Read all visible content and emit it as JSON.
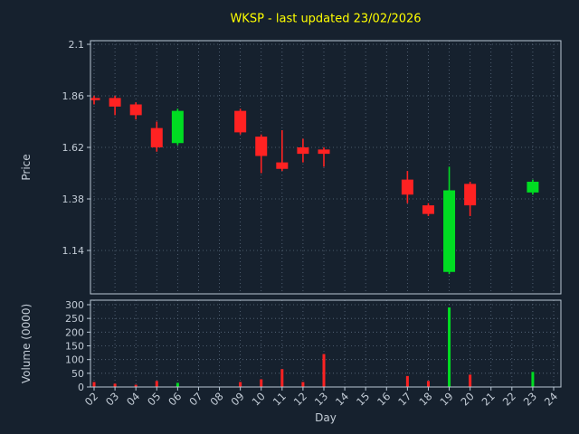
{
  "title": "WKSP - last updated 23/02/2026",
  "colors": {
    "background": "#16212e",
    "title": "#ffff00",
    "frame": "#b9c7d4",
    "text": "#c3ccd6",
    "grid": "#5d6d80",
    "up": "#00dd22",
    "down": "#ff2222"
  },
  "axes": {
    "price_label": "Price",
    "volume_label": "Volume (0000)",
    "x_label": "Day",
    "price_ticks": [
      2.1,
      1.86,
      1.62,
      1.38,
      1.14
    ],
    "volume_ticks": [
      0,
      50,
      100,
      150,
      200,
      250,
      300
    ],
    "x_tick_labels": [
      "02",
      "03",
      "04",
      "05",
      "06",
      "07",
      "08",
      "09",
      "10",
      "11",
      "12",
      "13",
      "14",
      "15",
      "16",
      "17",
      "18",
      "19",
      "20",
      "21",
      "22",
      "23",
      "24"
    ]
  },
  "chart_data": {
    "type": "candlestick",
    "xlabel": "Day",
    "ylabel_price": "Price",
    "ylabel_volume": "Volume (0000)",
    "price_range": [
      0.94,
      2.12
    ],
    "volume_range": [
      0,
      300
    ],
    "candles": [
      {
        "day": 2,
        "open": 1.85,
        "high": 1.86,
        "low": 1.82,
        "close": 1.84
      },
      {
        "day": 3,
        "open": 1.85,
        "high": 1.86,
        "low": 1.77,
        "close": 1.81
      },
      {
        "day": 4,
        "open": 1.82,
        "high": 1.83,
        "low": 1.75,
        "close": 1.77
      },
      {
        "day": 5,
        "open": 1.71,
        "high": 1.74,
        "low": 1.6,
        "close": 1.62
      },
      {
        "day": 6,
        "open": 1.64,
        "high": 1.8,
        "low": 1.63,
        "close": 1.79
      },
      {
        "day": 9,
        "open": 1.79,
        "high": 1.8,
        "low": 1.68,
        "close": 1.69
      },
      {
        "day": 10,
        "open": 1.67,
        "high": 1.68,
        "low": 1.5,
        "close": 1.58
      },
      {
        "day": 11,
        "open": 1.55,
        "high": 1.7,
        "low": 1.51,
        "close": 1.52
      },
      {
        "day": 12,
        "open": 1.62,
        "high": 1.66,
        "low": 1.55,
        "close": 1.59
      },
      {
        "day": 13,
        "open": 1.61,
        "high": 1.62,
        "low": 1.53,
        "close": 1.59
      },
      {
        "day": 17,
        "open": 1.47,
        "high": 1.51,
        "low": 1.36,
        "close": 1.4
      },
      {
        "day": 18,
        "open": 1.35,
        "high": 1.36,
        "low": 1.3,
        "close": 1.31
      },
      {
        "day": 19,
        "open": 1.04,
        "high": 1.53,
        "low": 1.03,
        "close": 1.42
      },
      {
        "day": 20,
        "open": 1.45,
        "high": 1.46,
        "low": 1.3,
        "close": 1.35
      },
      {
        "day": 23,
        "open": 1.41,
        "high": 1.47,
        "low": 1.4,
        "close": 1.46
      }
    ],
    "volumes": [
      {
        "day": 2,
        "value": 18,
        "dir": "down"
      },
      {
        "day": 3,
        "value": 12,
        "dir": "down"
      },
      {
        "day": 4,
        "value": 8,
        "dir": "down"
      },
      {
        "day": 5,
        "value": 22,
        "dir": "down"
      },
      {
        "day": 6,
        "value": 15,
        "dir": "up"
      },
      {
        "day": 9,
        "value": 18,
        "dir": "down"
      },
      {
        "day": 10,
        "value": 28,
        "dir": "down"
      },
      {
        "day": 11,
        "value": 65,
        "dir": "down"
      },
      {
        "day": 12,
        "value": 18,
        "dir": "down"
      },
      {
        "day": 13,
        "value": 120,
        "dir": "down"
      },
      {
        "day": 17,
        "value": 40,
        "dir": "down"
      },
      {
        "day": 18,
        "value": 22,
        "dir": "down"
      },
      {
        "day": 19,
        "value": 290,
        "dir": "up"
      },
      {
        "day": 20,
        "value": 45,
        "dir": "down"
      },
      {
        "day": 23,
        "value": 55,
        "dir": "up"
      }
    ]
  }
}
